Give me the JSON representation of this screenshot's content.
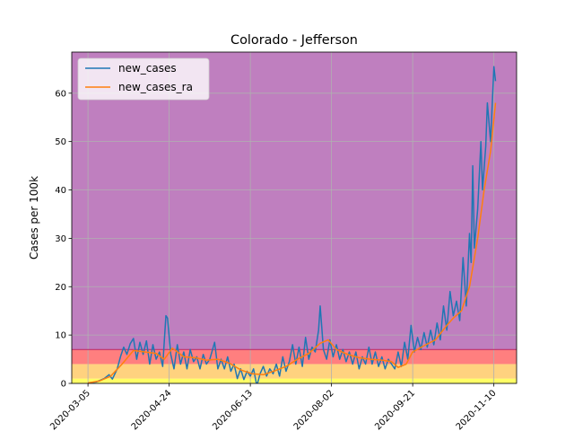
{
  "chart_data": {
    "type": "line",
    "title": "Colorado - Jefferson",
    "xlabel": "",
    "ylabel": "Cases per 100k",
    "x_ticks": [
      "2020-03-05",
      "2020-04-24",
      "2020-06-13",
      "2020-08-02",
      "2020-09-21",
      "2020-11-10"
    ],
    "x_range": [
      "2020-02-24",
      "2020-11-24"
    ],
    "ylim": [
      0,
      68.5
    ],
    "y_ticks": [
      0,
      10,
      20,
      30,
      40,
      50,
      60
    ],
    "grid": true,
    "legend_position": "top-left",
    "background_bands": [
      {
        "from": 0,
        "to": 1,
        "color": "#ffff66"
      },
      {
        "from": 1,
        "to": 4,
        "color": "#ffd27f"
      },
      {
        "from": 4,
        "to": 7,
        "color": "#ff7f7f"
      },
      {
        "from": 7,
        "to": 68.5,
        "color": "#bf7fbf"
      }
    ],
    "threshold_line": {
      "value": 7,
      "color": "#c0306a"
    },
    "series": [
      {
        "name": "new_cases",
        "color": "#1f77b4",
        "points": [
          [
            "2020-03-05",
            0.1
          ],
          [
            "2020-03-10",
            0.3
          ],
          [
            "2020-03-15",
            1.0
          ],
          [
            "2020-03-18",
            1.8
          ],
          [
            "2020-03-20",
            0.9
          ],
          [
            "2020-03-23",
            3.0
          ],
          [
            "2020-03-25",
            5.5
          ],
          [
            "2020-03-27",
            7.5
          ],
          [
            "2020-03-29",
            6.0
          ],
          [
            "2020-03-31",
            8.2
          ],
          [
            "2020-04-02",
            9.3
          ],
          [
            "2020-04-04",
            5.0
          ],
          [
            "2020-04-06",
            8.5
          ],
          [
            "2020-04-08",
            6.0
          ],
          [
            "2020-04-10",
            8.8
          ],
          [
            "2020-04-12",
            4.0
          ],
          [
            "2020-04-14",
            8.0
          ],
          [
            "2020-04-16",
            5.0
          ],
          [
            "2020-04-18",
            6.5
          ],
          [
            "2020-04-20",
            3.5
          ],
          [
            "2020-04-22",
            14.0
          ],
          [
            "2020-04-23",
            13.5
          ],
          [
            "2020-04-25",
            6.0
          ],
          [
            "2020-04-27",
            3.0
          ],
          [
            "2020-04-29",
            8.0
          ],
          [
            "2020-05-01",
            4.0
          ],
          [
            "2020-05-03",
            6.5
          ],
          [
            "2020-05-05",
            3.0
          ],
          [
            "2020-05-07",
            7.0
          ],
          [
            "2020-05-09",
            4.5
          ],
          [
            "2020-05-11",
            5.5
          ],
          [
            "2020-05-13",
            3.0
          ],
          [
            "2020-05-15",
            6.0
          ],
          [
            "2020-05-17",
            4.0
          ],
          [
            "2020-05-19",
            5.0
          ],
          [
            "2020-05-22",
            8.5
          ],
          [
            "2020-05-24",
            3.0
          ],
          [
            "2020-05-26",
            5.0
          ],
          [
            "2020-05-28",
            3.0
          ],
          [
            "2020-05-30",
            5.5
          ],
          [
            "2020-06-01",
            2.5
          ],
          [
            "2020-06-03",
            4.0
          ],
          [
            "2020-06-05",
            1.0
          ],
          [
            "2020-06-07",
            3.0
          ],
          [
            "2020-06-09",
            0.8
          ],
          [
            "2020-06-11",
            2.5
          ],
          [
            "2020-06-13",
            1.5
          ],
          [
            "2020-06-15",
            3.0
          ],
          [
            "2020-06-17",
            -0.5
          ],
          [
            "2020-06-19",
            2.0
          ],
          [
            "2020-06-21",
            3.5
          ],
          [
            "2020-06-23",
            1.5
          ],
          [
            "2020-06-25",
            3.0
          ],
          [
            "2020-06-27",
            2.0
          ],
          [
            "2020-06-29",
            4.0
          ],
          [
            "2020-07-01",
            1.5
          ],
          [
            "2020-07-03",
            5.5
          ],
          [
            "2020-07-05",
            2.5
          ],
          [
            "2020-07-07",
            4.5
          ],
          [
            "2020-07-09",
            8.0
          ],
          [
            "2020-07-11",
            4.0
          ],
          [
            "2020-07-13",
            7.5
          ],
          [
            "2020-07-15",
            3.5
          ],
          [
            "2020-07-17",
            9.5
          ],
          [
            "2020-07-19",
            5.0
          ],
          [
            "2020-07-21",
            7.5
          ],
          [
            "2020-07-23",
            6.5
          ],
          [
            "2020-07-25",
            11.0
          ],
          [
            "2020-07-26",
            16.0
          ],
          [
            "2020-07-28",
            7.0
          ],
          [
            "2020-07-30",
            5.0
          ],
          [
            "2020-08-01",
            9.0
          ],
          [
            "2020-08-03",
            5.5
          ],
          [
            "2020-08-05",
            8.0
          ],
          [
            "2020-08-07",
            5.0
          ],
          [
            "2020-08-09",
            7.0
          ],
          [
            "2020-08-11",
            4.5
          ],
          [
            "2020-08-13",
            6.5
          ],
          [
            "2020-08-15",
            4.0
          ],
          [
            "2020-08-17",
            6.5
          ],
          [
            "2020-08-19",
            3.0
          ],
          [
            "2020-08-21",
            5.5
          ],
          [
            "2020-08-23",
            4.0
          ],
          [
            "2020-08-25",
            7.5
          ],
          [
            "2020-08-27",
            4.0
          ],
          [
            "2020-08-29",
            6.5
          ],
          [
            "2020-08-31",
            3.5
          ],
          [
            "2020-09-02",
            5.5
          ],
          [
            "2020-09-04",
            3.0
          ],
          [
            "2020-09-06",
            5.0
          ],
          [
            "2020-09-08",
            4.0
          ],
          [
            "2020-09-10",
            3.0
          ],
          [
            "2020-09-12",
            6.5
          ],
          [
            "2020-09-14",
            3.5
          ],
          [
            "2020-09-16",
            8.5
          ],
          [
            "2020-09-18",
            5.0
          ],
          [
            "2020-09-20",
            12.0
          ],
          [
            "2020-09-22",
            6.5
          ],
          [
            "2020-09-24",
            9.5
          ],
          [
            "2020-09-26",
            7.0
          ],
          [
            "2020-09-28",
            10.5
          ],
          [
            "2020-09-30",
            7.5
          ],
          [
            "2020-10-02",
            11.0
          ],
          [
            "2020-10-04",
            8.0
          ],
          [
            "2020-10-06",
            12.5
          ],
          [
            "2020-10-08",
            9.0
          ],
          [
            "2020-10-10",
            16.0
          ],
          [
            "2020-10-12",
            11.0
          ],
          [
            "2020-10-14",
            19.0
          ],
          [
            "2020-10-16",
            14.0
          ],
          [
            "2020-10-18",
            17.0
          ],
          [
            "2020-10-20",
            13.0
          ],
          [
            "2020-10-22",
            26.0
          ],
          [
            "2020-10-24",
            16.0
          ],
          [
            "2020-10-26",
            31.0
          ],
          [
            "2020-10-27",
            25.0
          ],
          [
            "2020-10-28",
            45.0
          ],
          [
            "2020-10-29",
            28.0
          ],
          [
            "2020-10-31",
            36.0
          ],
          [
            "2020-11-02",
            50.0
          ],
          [
            "2020-11-03",
            40.0
          ],
          [
            "2020-11-05",
            49.0
          ],
          [
            "2020-11-06",
            58.0
          ],
          [
            "2020-11-08",
            50.0
          ],
          [
            "2020-11-10",
            65.5
          ],
          [
            "2020-11-11",
            62.5
          ]
        ]
      },
      {
        "name": "new_cases_ra",
        "color": "#ff7f0e",
        "points": [
          [
            "2020-03-05",
            0.1
          ],
          [
            "2020-03-12",
            0.5
          ],
          [
            "2020-03-19",
            1.5
          ],
          [
            "2020-03-26",
            4.0
          ],
          [
            "2020-04-02",
            6.8
          ],
          [
            "2020-04-09",
            6.5
          ],
          [
            "2020-04-16",
            6.2
          ],
          [
            "2020-04-21",
            5.0
          ],
          [
            "2020-04-26",
            7.3
          ],
          [
            "2020-05-03",
            5.5
          ],
          [
            "2020-05-10",
            5.3
          ],
          [
            "2020-05-17",
            4.8
          ],
          [
            "2020-05-24",
            5.0
          ],
          [
            "2020-05-31",
            4.2
          ],
          [
            "2020-06-07",
            2.8
          ],
          [
            "2020-06-14",
            2.0
          ],
          [
            "2020-06-21",
            1.8
          ],
          [
            "2020-06-28",
            2.6
          ],
          [
            "2020-07-05",
            3.5
          ],
          [
            "2020-07-12",
            5.0
          ],
          [
            "2020-07-19",
            6.2
          ],
          [
            "2020-07-26",
            8.3
          ],
          [
            "2020-07-31",
            9.0
          ],
          [
            "2020-08-05",
            7.0
          ],
          [
            "2020-08-12",
            6.0
          ],
          [
            "2020-08-19",
            5.3
          ],
          [
            "2020-08-26",
            5.0
          ],
          [
            "2020-09-02",
            4.8
          ],
          [
            "2020-09-08",
            4.5
          ],
          [
            "2020-09-12",
            3.3
          ],
          [
            "2020-09-17",
            4.0
          ],
          [
            "2020-09-21",
            6.5
          ],
          [
            "2020-09-28",
            7.8
          ],
          [
            "2020-10-05",
            9.0
          ],
          [
            "2020-10-12",
            12.0
          ],
          [
            "2020-10-16",
            13.5
          ],
          [
            "2020-10-21",
            15.0
          ],
          [
            "2020-10-26",
            20.0
          ],
          [
            "2020-10-31",
            30.0
          ],
          [
            "2020-11-04",
            40.0
          ],
          [
            "2020-11-08",
            48.0
          ],
          [
            "2020-11-11",
            58.0
          ]
        ]
      }
    ]
  }
}
